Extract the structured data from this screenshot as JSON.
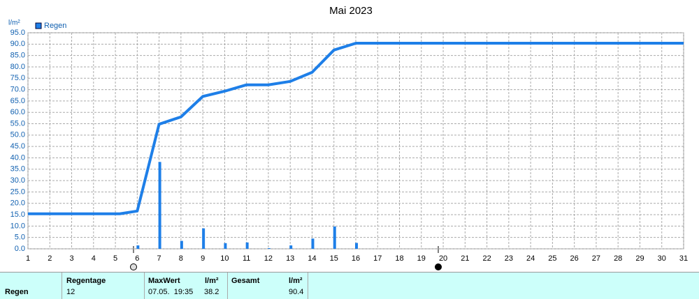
{
  "chart_data": {
    "type": "combo",
    "title": "Mai 2023",
    "y_label": "l/m²",
    "xlim": [
      1,
      31
    ],
    "xticks": [
      1,
      2,
      3,
      4,
      5,
      6,
      7,
      8,
      9,
      10,
      11,
      12,
      13,
      14,
      15,
      16,
      17,
      18,
      19,
      20,
      21,
      22,
      23,
      24,
      25,
      26,
      27,
      28,
      29,
      30,
      31
    ],
    "ylim": [
      0,
      95
    ],
    "yticks": [
      {
        "value": 0,
        "label": "0.0"
      },
      {
        "value": 5,
        "label": "5.0"
      },
      {
        "value": 10,
        "label": "10.0"
      },
      {
        "value": 15,
        "label": "15.0"
      },
      {
        "value": 20,
        "label": "20.0"
      },
      {
        "value": 25,
        "label": "25.0"
      },
      {
        "value": 30,
        "label": "30.0"
      },
      {
        "value": 35,
        "label": "35.0"
      },
      {
        "value": 40,
        "label": "40.0"
      },
      {
        "value": 45,
        "label": "45.0"
      },
      {
        "value": 50,
        "label": "50.0"
      },
      {
        "value": 55,
        "label": "55.0"
      },
      {
        "value": 60,
        "label": "60.0"
      },
      {
        "value": 65,
        "label": "65.0"
      },
      {
        "value": 70,
        "label": "70.0"
      },
      {
        "value": 75,
        "label": "75.0"
      },
      {
        "value": 80,
        "label": "80.0"
      },
      {
        "value": 85,
        "label": "85.0"
      },
      {
        "value": 90,
        "label": "90.0"
      },
      {
        "value": 95,
        "label": "95.0"
      }
    ],
    "grid": true,
    "series": [
      {
        "name": "Regen",
        "type": "bar",
        "color": "#1e7fe8",
        "x": [
          6,
          7,
          8,
          9,
          10,
          11,
          12,
          13,
          14,
          15,
          16
        ],
        "values": [
          1.5,
          38.2,
          3.5,
          9.0,
          2.5,
          2.8,
          0.3,
          1.5,
          4.5,
          9.8,
          2.6
        ]
      },
      {
        "type": "line",
        "color": "#1e7fe8",
        "x": [
          1,
          5.2,
          6,
          7,
          8,
          9,
          10,
          11,
          12,
          13,
          14,
          15,
          16,
          31
        ],
        "values": [
          15.4,
          15.4,
          16.6,
          54.8,
          58.0,
          67.0,
          69.3,
          72.1,
          72.1,
          73.6,
          77.6,
          87.4,
          90.4,
          90.4
        ]
      }
    ]
  },
  "table": {
    "header": [
      "Regentage",
      "MaxWert",
      "l/m²",
      "Gesamt",
      "l/m²"
    ],
    "rows": [
      [
        "Regen",
        "12",
        "07.05.  19:35",
        "38.2",
        "90.4"
      ]
    ]
  }
}
